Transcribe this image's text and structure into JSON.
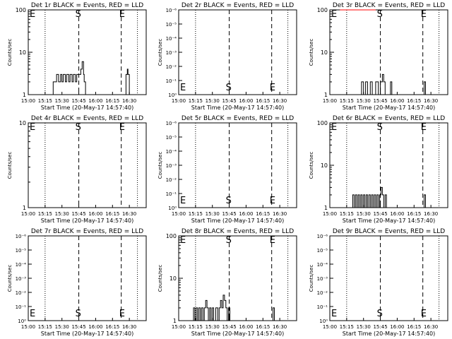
{
  "chart_data": [
    {
      "type": "line",
      "title": "Det 1r BLACK = Events, RED = LLD",
      "xlabel": "Start Time (20-May-17 14:57:40)",
      "ylabel": "Counts/sec",
      "x_ticks": [
        "15:00",
        "15:15",
        "15:30",
        "15:45",
        "16:00",
        "16:15",
        "16:30"
      ],
      "y_ticks": [
        "1",
        "10",
        "100"
      ],
      "yscale": "log",
      "markers": [
        "S",
        "E"
      ],
      "series": [
        {
          "color": "#000000",
          "values": [
            [
              15.35,
              1
            ],
            [
              15.37,
              2
            ],
            [
              15.4,
              2
            ],
            [
              15.42,
              3
            ],
            [
              15.45,
              2
            ],
            [
              15.48,
              3
            ],
            [
              15.5,
              2
            ],
            [
              15.52,
              3
            ],
            [
              15.55,
              2
            ],
            [
              15.57,
              3
            ],
            [
              15.6,
              2
            ],
            [
              15.62,
              3
            ],
            [
              15.65,
              2
            ],
            [
              15.67,
              3
            ],
            [
              15.7,
              2
            ],
            [
              15.72,
              3
            ],
            [
              15.75,
              3
            ],
            [
              15.78,
              4
            ],
            [
              15.8,
              6
            ],
            [
              15.82,
              3
            ],
            [
              15.83,
              2
            ],
            [
              15.85,
              1
            ],
            [
              16.43,
              1
            ],
            [
              16.45,
              3
            ],
            [
              16.47,
              4
            ],
            [
              16.48,
              3
            ],
            [
              16.5,
              1
            ]
          ]
        }
      ]
    },
    {
      "type": "line",
      "title": "Det 2r BLACK = Events, RED = LLD",
      "xlabel": "Start Time (20-May-17 14:57:40)",
      "ylabel": "Counts/sec",
      "x_ticks": [
        "15:00",
        "15:15",
        "15:30",
        "15:45",
        "16:00",
        "16:15",
        "16:30"
      ],
      "y_ticks": [
        "10⁰",
        "10⁻¹",
        "10⁻²",
        "10⁻³",
        "10⁻⁴",
        "10⁻⁵",
        "10⁻⁶"
      ],
      "yscale": "log",
      "markers": [
        "S",
        "E"
      ],
      "series": []
    },
    {
      "type": "line",
      "title": "Det 3r BLACK = Events, RED = LLD",
      "xlabel": "Start Time (20-May-17 14:57:40)",
      "ylabel": "Counts/sec",
      "x_ticks": [
        "15:00",
        "15:15",
        "15:30",
        "15:45",
        "16:00",
        "16:15",
        "16:30"
      ],
      "y_ticks": [
        "1",
        "10",
        "100"
      ],
      "yscale": "log",
      "markers": [
        "S",
        "E"
      ],
      "series": [
        {
          "color": "#000000",
          "values": [
            [
              15.45,
              1
            ],
            [
              15.47,
              2
            ],
            [
              15.5,
              1
            ],
            [
              15.53,
              2
            ],
            [
              15.56,
              1
            ],
            [
              15.6,
              2
            ],
            [
              15.63,
              1
            ],
            [
              15.68,
              2
            ],
            [
              15.72,
              1
            ],
            [
              15.75,
              2
            ],
            [
              15.78,
              3
            ],
            [
              15.8,
              2
            ],
            [
              15.82,
              1
            ],
            [
              15.88,
              1
            ],
            [
              15.9,
              2
            ],
            [
              15.92,
              1
            ],
            [
              16.38,
              1
            ],
            [
              16.4,
              2
            ],
            [
              16.42,
              1
            ]
          ]
        },
        {
          "color": "#ff0000",
          "values": [
            [
              15.15,
              100
            ],
            [
              15.2,
              100
            ],
            [
              15.3,
              100
            ],
            [
              15.6,
              100
            ],
            [
              15.68,
              100
            ]
          ]
        }
      ]
    },
    {
      "type": "line",
      "title": "Det 4r BLACK = Events, RED = LLD",
      "xlabel": "Start Time (20-May-17 14:57:40)",
      "ylabel": "Counts/sec",
      "x_ticks": [
        "15:00",
        "15:15",
        "15:30",
        "15:45",
        "16:00",
        "16:15",
        "16:30"
      ],
      "y_ticks": [
        "1",
        "10"
      ],
      "yscale": "log",
      "markers": [
        "S",
        "E"
      ],
      "series": []
    },
    {
      "type": "line",
      "title": "Det 5r BLACK = Events, RED = LLD",
      "xlabel": "Start Time (20-May-17 14:57:40)",
      "ylabel": "Counts/sec",
      "x_ticks": [
        "15:00",
        "15:15",
        "15:30",
        "15:45",
        "16:00",
        "16:15",
        "16:30"
      ],
      "y_ticks": [
        "10⁰",
        "10⁻¹",
        "10⁻²",
        "10⁻³",
        "10⁻⁴",
        "10⁻⁵",
        "10⁻⁶"
      ],
      "yscale": "log",
      "markers": [
        "S",
        "E"
      ],
      "series": []
    },
    {
      "type": "line",
      "title": "Det 6r BLACK = Events, RED = LLD",
      "xlabel": "Start Time (20-May-17 14:57:40)",
      "ylabel": "Counts/sec",
      "x_ticks": [
        "15:00",
        "15:15",
        "15:30",
        "15:45",
        "16:00",
        "16:15",
        "16:30"
      ],
      "y_ticks": [
        "1",
        "10",
        "100"
      ],
      "yscale": "log",
      "markers": [
        "S",
        "E"
      ],
      "series": [
        {
          "color": "#000000",
          "values": [
            [
              15.32,
              1
            ],
            [
              15.34,
              2
            ],
            [
              15.36,
              1
            ],
            [
              15.38,
              2
            ],
            [
              15.4,
              1
            ],
            [
              15.42,
              2
            ],
            [
              15.44,
              1
            ],
            [
              15.46,
              2
            ],
            [
              15.48,
              1
            ],
            [
              15.5,
              2
            ],
            [
              15.52,
              1
            ],
            [
              15.54,
              2
            ],
            [
              15.56,
              1
            ],
            [
              15.58,
              2
            ],
            [
              15.6,
              1
            ],
            [
              15.62,
              2
            ],
            [
              15.64,
              1
            ],
            [
              15.66,
              2
            ],
            [
              15.68,
              1
            ],
            [
              15.7,
              2
            ],
            [
              15.72,
              1
            ],
            [
              15.74,
              2
            ],
            [
              15.76,
              3
            ],
            [
              15.78,
              2
            ],
            [
              15.8,
              1
            ],
            [
              15.82,
              2
            ],
            [
              15.84,
              1
            ],
            [
              16.38,
              1
            ],
            [
              16.4,
              2
            ],
            [
              16.42,
              1
            ]
          ]
        }
      ]
    },
    {
      "type": "line",
      "title": "Det 7r BLACK = Events, RED = LLD",
      "xlabel": "Start Time (20-May-17 14:57:40)",
      "ylabel": "Counts/sec",
      "x_ticks": [
        "15:00",
        "15:15",
        "15:30",
        "15:45",
        "16:00",
        "16:15",
        "16:30"
      ],
      "y_ticks": [
        "10⁰",
        "10⁻¹",
        "10⁻²",
        "10⁻³",
        "10⁻⁴",
        "10⁻⁵",
        "10⁻⁶"
      ],
      "yscale": "log",
      "markers": [
        "S",
        "E"
      ],
      "series": []
    },
    {
      "type": "line",
      "title": "Det 8r BLACK = Events, RED = LLD",
      "xlabel": "Start Time (20-May-17 14:57:40)",
      "ylabel": "Counts/sec",
      "x_ticks": [
        "15:00",
        "15:15",
        "15:30",
        "15:45",
        "16:00",
        "16:15",
        "16:30"
      ],
      "y_ticks": [
        "1",
        "10",
        "100"
      ],
      "yscale": "log",
      "markers": [
        "S",
        "E"
      ],
      "series": [
        {
          "color": "#000000",
          "values": [
            [
              15.2,
              1
            ],
            [
              15.22,
              2
            ],
            [
              15.24,
              1
            ],
            [
              15.26,
              2
            ],
            [
              15.28,
              1
            ],
            [
              15.3,
              2
            ],
            [
              15.32,
              1
            ],
            [
              15.34,
              2
            ],
            [
              15.36,
              1
            ],
            [
              15.38,
              2
            ],
            [
              15.4,
              3
            ],
            [
              15.42,
              2
            ],
            [
              15.44,
              1
            ],
            [
              15.46,
              2
            ],
            [
              15.48,
              1
            ],
            [
              15.5,
              2
            ],
            [
              15.52,
              1
            ],
            [
              15.55,
              2
            ],
            [
              15.58,
              1
            ],
            [
              15.6,
              2
            ],
            [
              15.62,
              3
            ],
            [
              15.64,
              2
            ],
            [
              15.66,
              4
            ],
            [
              15.68,
              3
            ],
            [
              15.7,
              2
            ],
            [
              15.72,
              1
            ],
            [
              15.74,
              2
            ],
            [
              15.76,
              1
            ],
            [
              16.38,
              1
            ],
            [
              16.4,
              2
            ],
            [
              16.42,
              1
            ]
          ]
        }
      ]
    },
    {
      "type": "line",
      "title": "Det 9r BLACK = Events, RED = LLD",
      "xlabel": "Start Time (20-May-17 14:57:40)",
      "ylabel": "Counts/sec",
      "x_ticks": [
        "15:00",
        "15:15",
        "15:30",
        "15:45",
        "16:00",
        "16:15",
        "16:30"
      ],
      "y_ticks": [
        "10⁰",
        "10⁻¹",
        "10⁻²",
        "10⁻³",
        "10⁻⁴",
        "10⁻⁵",
        "10⁻⁶"
      ],
      "yscale": "log",
      "markers": [
        "S",
        "E"
      ],
      "series": []
    }
  ]
}
